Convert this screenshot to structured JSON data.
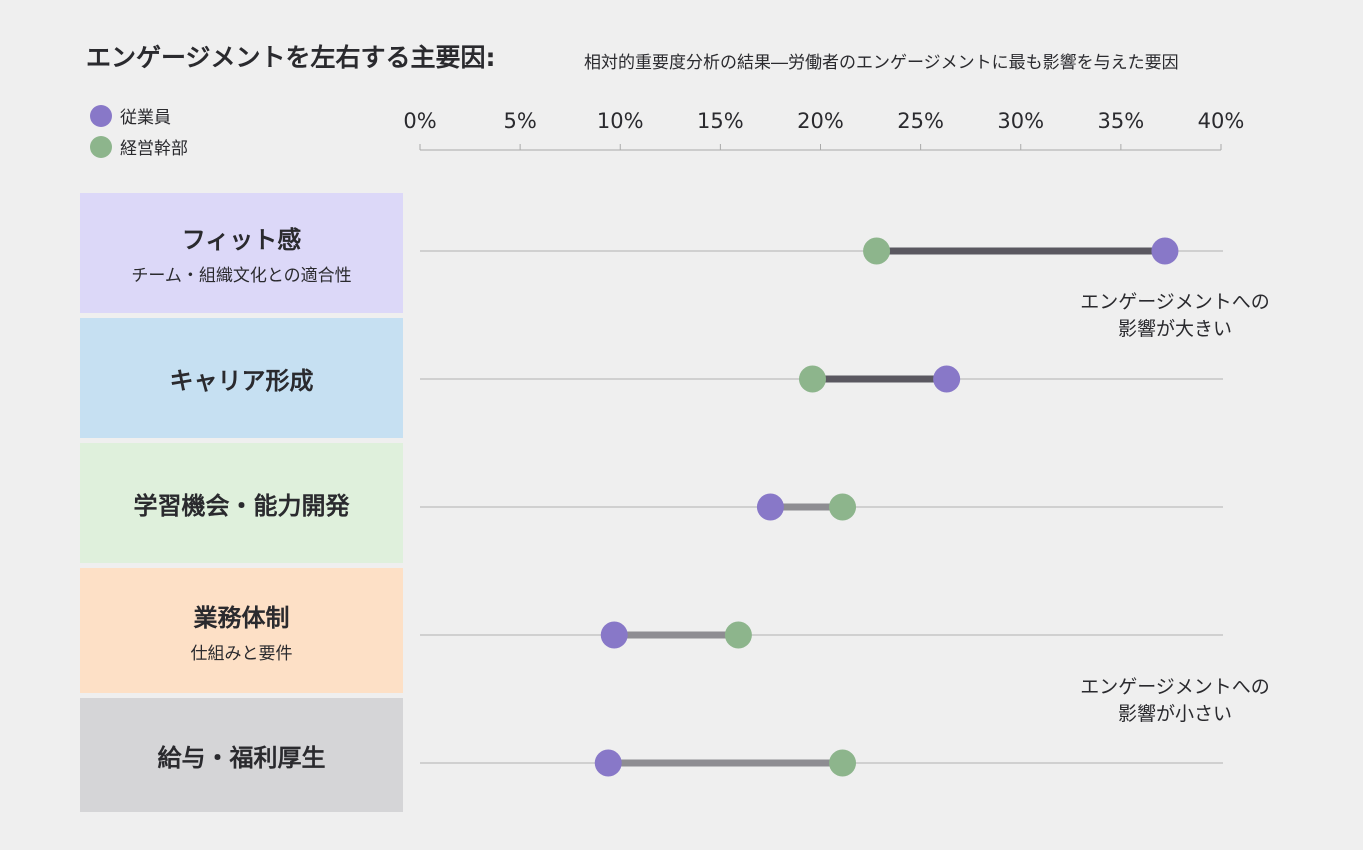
{
  "header": {
    "title": "エンゲージメントを左右する主要因:",
    "subtitle": "相対的重要度分析の結果―労働者のエンゲージメントに最も影響を与えた要因"
  },
  "chart_data": {
    "type": "dumbbell",
    "xlim": [
      0,
      40
    ],
    "x_ticks": [
      "0%",
      "5%",
      "10%",
      "15%",
      "20%",
      "25%",
      "30%",
      "35%",
      "40%"
    ],
    "x_tick_values": [
      0,
      5,
      10,
      15,
      20,
      25,
      30,
      35,
      40
    ],
    "legend": {
      "placement": "top-left",
      "entries": [
        {
          "name": "従業員",
          "color": "#8878c8"
        },
        {
          "name": "経営幹部",
          "color": "#8db58c"
        }
      ]
    },
    "categories": [
      {
        "name": "フィット感",
        "sub": "チーム・組織文化との適合性",
        "bg": "#dcd8f8",
        "employee": 37.2,
        "executive": 22.8,
        "line_color": "#5a5860"
      },
      {
        "name": "キャリア形成",
        "sub": "",
        "bg": "#c6e0f2",
        "employee": 26.3,
        "executive": 19.6,
        "line_color": "#5a5860"
      },
      {
        "name": "学習機会・能力開発",
        "sub": "",
        "bg": "#dff0dc",
        "employee": 17.5,
        "executive": 21.1,
        "line_color": "#8e8d92"
      },
      {
        "name": "業務体制",
        "sub": "仕組みと要件",
        "bg": "#fde0c6",
        "employee": 9.7,
        "executive": 15.9,
        "line_color": "#8e8d92"
      },
      {
        "name": "給与・福利厚生",
        "sub": "",
        "bg": "#d5d5d7",
        "employee": 9.4,
        "executive": 21.1,
        "line_color": "#8e8d92"
      }
    ],
    "annotations": [
      {
        "text_line1": "エンゲージメントへの",
        "text_line2": "影響が大きい"
      },
      {
        "text_line1": "エンゲージメントへの",
        "text_line2": "影響が小さい"
      }
    ]
  }
}
